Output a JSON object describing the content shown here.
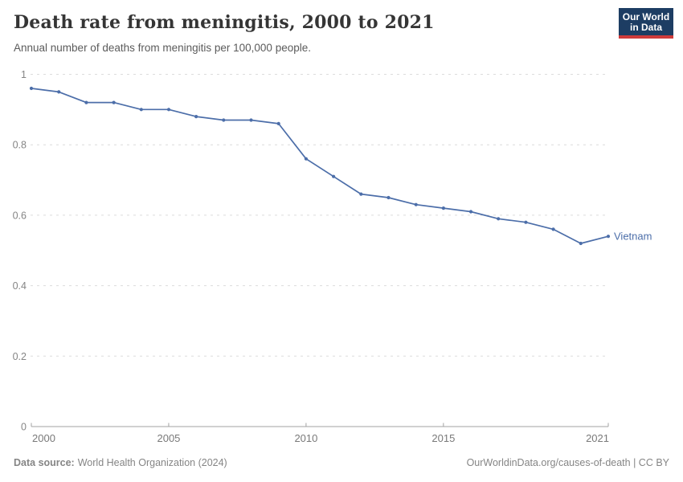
{
  "header": {
    "title": "Death rate from meningitis, 2000 to 2021",
    "subtitle": "Annual number of deaths from meningitis per 100,000 people."
  },
  "logo": {
    "line1": "Our World",
    "line2": "in Data"
  },
  "chart_data": {
    "type": "line",
    "title": "Death rate from meningitis, 2000 to 2021",
    "subtitle": "Annual number of deaths from meningitis per 100,000 people.",
    "xlabel": "",
    "ylabel": "",
    "xlim": [
      2000,
      2021
    ],
    "ylim": [
      0,
      1
    ],
    "x_ticks": [
      2000,
      2005,
      2010,
      2015,
      2021
    ],
    "y_ticks": [
      0,
      0.2,
      0.4,
      0.6,
      0.8,
      1
    ],
    "grid": "horizontal-dashed",
    "legend_position": "end-of-line-label",
    "series": [
      {
        "name": "Vietnam",
        "color": "#4c6ea9",
        "x": [
          2000,
          2001,
          2002,
          2003,
          2004,
          2005,
          2006,
          2007,
          2008,
          2009,
          2010,
          2011,
          2012,
          2013,
          2014,
          2015,
          2016,
          2017,
          2018,
          2019,
          2020,
          2021
        ],
        "values": [
          0.96,
          0.95,
          0.92,
          0.92,
          0.9,
          0.9,
          0.88,
          0.87,
          0.87,
          0.86,
          0.76,
          0.71,
          0.66,
          0.65,
          0.63,
          0.62,
          0.61,
          0.59,
          0.58,
          0.56,
          0.52,
          0.54
        ]
      }
    ]
  },
  "footer": {
    "source_label": "Data source:",
    "source_text": "World Health Organization (2024)",
    "right_text": "OurWorldinData.org/causes-of-death | CC BY"
  },
  "colors": {
    "line": "#4c6ea9",
    "grid": "#dcdcdc",
    "axis": "#a3a3a3",
    "y_tick_label": "#858585",
    "x_tick_label": "#797979",
    "title": "#353535",
    "subtitle": "#5b5b5b",
    "footer": "#858585",
    "logo_bg": "#1d3d63",
    "logo_stripe": "#cf3b3b"
  }
}
